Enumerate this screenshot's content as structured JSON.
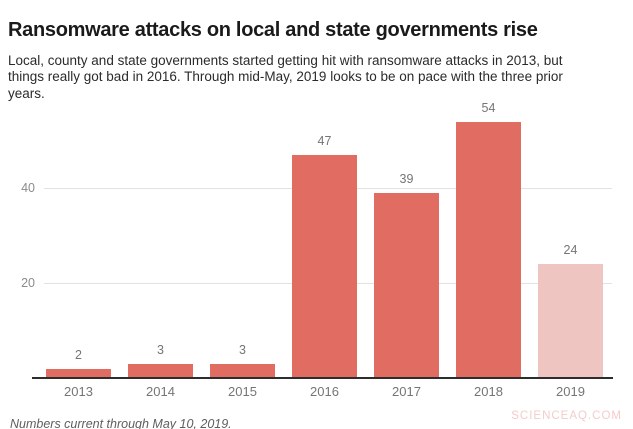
{
  "header": {
    "title": "Ransomware attacks on local and state governments rise",
    "subtitle": "Local, county and state governments started getting hit with ransomware attacks in 2013, but things really got bad in 2016. Through mid-May, 2019 looks to be on pace with the three prior years."
  },
  "chart_data": {
    "type": "bar",
    "title": "Ransomware attacks on local and state governments rise",
    "categories": [
      "2013",
      "2014",
      "2015",
      "2016",
      "2017",
      "2018",
      "2019"
    ],
    "values": [
      2,
      3,
      3,
      47,
      39,
      54,
      24
    ],
    "bar_colors": [
      "#e06c62",
      "#e06c62",
      "#e06c62",
      "#e06c62",
      "#e06c62",
      "#e06c62",
      "#eec5c1"
    ],
    "value_labels_shown": true,
    "xlabel": "",
    "ylabel": "",
    "yticks": [
      20,
      40
    ],
    "ylim": [
      0,
      58
    ],
    "grid": "horizontal",
    "legend": "none",
    "note": "2019 bar rendered in a lighter tint (partial-year data)"
  },
  "footer": {
    "note": "Numbers current through May 10, 2019.",
    "watermark": "SCIENCEAQ.COM"
  },
  "colors": {
    "bar_default": "#e06c62",
    "bar_partial_year": "#eec5c1",
    "gridline": "#e2e2e2",
    "axis_line": "#2d2d2d",
    "tick_label": "#757575",
    "value_label": "#757575",
    "title": "#1a1a1a",
    "watermark": "#f3cdca"
  }
}
